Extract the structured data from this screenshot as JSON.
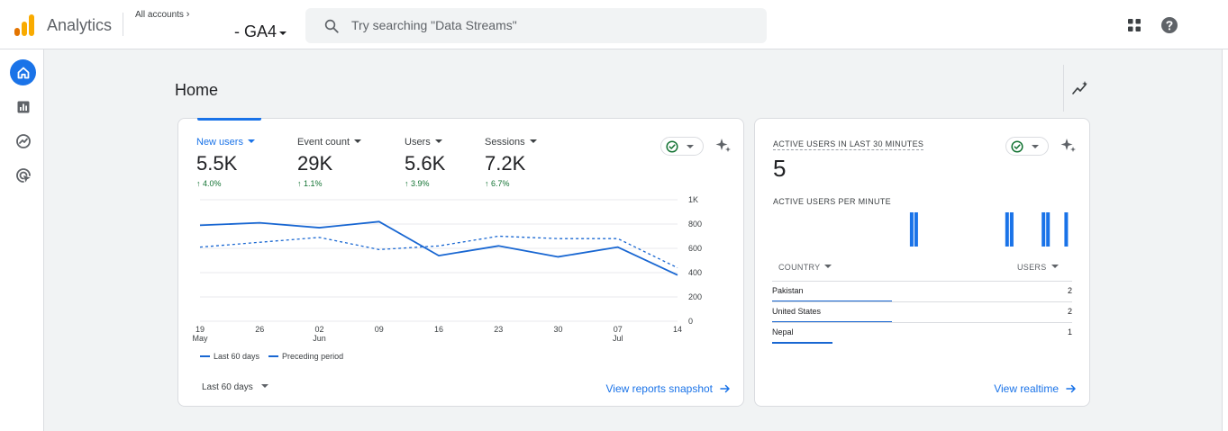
{
  "header": {
    "app_title": "Analytics",
    "account_crumb": "All accounts",
    "property_name": "- GA4",
    "search_placeholder": "Try searching \"Data Streams\""
  },
  "icons": {
    "logo": "analytics-logo-icon",
    "search": "search-icon",
    "apps": "apps-grid-icon",
    "help": "help-icon",
    "rail": [
      "home-icon",
      "reports-icon",
      "explore-icon",
      "advertising-icon"
    ],
    "insights": "insights-icon",
    "sparkle": "sparkle-icon",
    "status": "check-circle-icon"
  },
  "colors": {
    "accent": "#1a73e8",
    "series": "#1967d2",
    "positive": "#137333",
    "logo_orange": "#f9ab00",
    "logo_dark": "#e37400"
  },
  "page": {
    "title": "Home"
  },
  "overview": {
    "metrics": [
      {
        "label": "New users",
        "value": "5.5K",
        "change": "↑ 4.0%",
        "selected": true
      },
      {
        "label": "Event count",
        "value": "29K",
        "change": "↑ 1.1%",
        "selected": false
      },
      {
        "label": "Users",
        "value": "5.6K",
        "change": "↑ 3.9%",
        "selected": false
      },
      {
        "label": "Sessions",
        "value": "7.2K",
        "change": "↑ 6.7%",
        "selected": false
      }
    ],
    "legend": {
      "current": "Last 60 days",
      "previous": "Preceding period"
    },
    "range_label": "Last 60 days",
    "snapshot_link": "View reports snapshot"
  },
  "chart_data": {
    "type": "line",
    "x": [
      "19 May",
      "26 May",
      "02 Jun",
      "09 Jun",
      "16 Jun",
      "23 Jun",
      "30 Jun",
      "07 Jul",
      "14 Jul"
    ],
    "x_tick_labels": [
      {
        "day": "19",
        "month": "May"
      },
      {
        "day": "26",
        "month": ""
      },
      {
        "day": "02",
        "month": "Jun"
      },
      {
        "day": "09",
        "month": ""
      },
      {
        "day": "16",
        "month": ""
      },
      {
        "day": "23",
        "month": ""
      },
      {
        "day": "30",
        "month": ""
      },
      {
        "day": "07",
        "month": "Jul"
      },
      {
        "day": "14",
        "month": ""
      }
    ],
    "series": [
      {
        "name": "Last 60 days",
        "values": [
          790,
          810,
          770,
          820,
          540,
          620,
          530,
          610,
          380
        ],
        "style": "solid"
      },
      {
        "name": "Preceding period",
        "values": [
          610,
          650,
          690,
          590,
          620,
          700,
          680,
          680,
          440
        ],
        "style": "dashed"
      }
    ],
    "y_ticks": [
      "0",
      "200",
      "400",
      "600",
      "800",
      "1K"
    ],
    "ylim": [
      0,
      1000
    ],
    "y_axis_side": "right",
    "grid": true,
    "legend_position": "bottom-left"
  },
  "realtime": {
    "title": "ACTIVE USERS IN LAST 30 MINUTES",
    "value": "5",
    "per_minute_label": "ACTIVE USERS PER MINUTE",
    "per_minute": [
      0,
      0,
      0,
      0,
      0,
      0,
      0,
      0,
      0,
      0,
      0,
      0,
      0,
      0,
      0,
      0,
      0,
      0,
      0,
      0,
      0,
      0,
      0,
      0,
      0,
      0,
      0,
      0,
      0,
      0,
      1,
      1,
      0,
      0,
      0,
      0,
      0,
      0,
      0,
      0,
      0,
      0,
      0,
      0,
      0,
      0,
      0,
      0,
      0,
      0,
      0,
      1,
      1,
      0,
      0,
      0,
      0,
      0,
      0,
      1,
      1,
      0,
      0,
      0,
      1,
      0
    ],
    "columns": [
      "COUNTRY",
      "USERS"
    ],
    "rows": [
      {
        "country": "Pakistan",
        "users": "2",
        "share": 0.4
      },
      {
        "country": "United States",
        "users": "2",
        "share": 0.4
      },
      {
        "country": "Nepal",
        "users": "1",
        "share": 0.2
      }
    ],
    "link": "View realtime"
  }
}
